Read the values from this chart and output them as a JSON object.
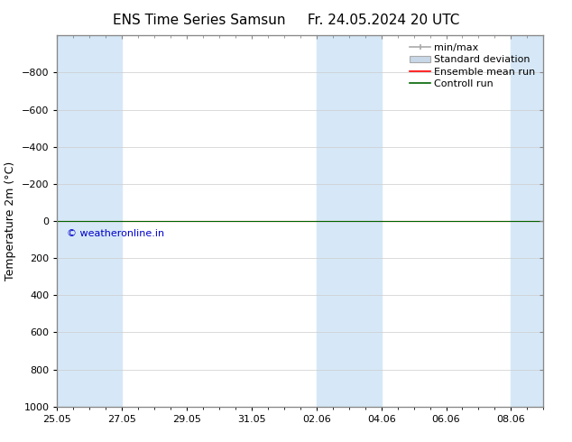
{
  "title_left": "ENS Time Series Samsun",
  "title_right": "Fr. 24.05.2024 20 UTC",
  "ylabel": "Temperature 2m (°C)",
  "watermark": "© weatheronline.in",
  "ylim_top": -1000,
  "ylim_bottom": 1000,
  "yticks": [
    -800,
    -600,
    -400,
    -200,
    0,
    200,
    400,
    600,
    800,
    1000
  ],
  "bg_color": "#ffffff",
  "plot_bg_color": "#ffffff",
  "shaded_band_color": "#d6e8f7",
  "xtick_labels": [
    "25.05",
    "27.05",
    "29.05",
    "31.05",
    "02.06",
    "04.06",
    "06.06",
    "08.06"
  ],
  "xtick_days": [
    0,
    2,
    4,
    6,
    8,
    10,
    12,
    14
  ],
  "xlim": [
    0,
    15
  ],
  "shaded_ranges": [
    [
      0,
      2
    ],
    [
      8,
      10
    ],
    [
      14,
      15
    ]
  ],
  "ensemble_mean_color": "#ff0000",
  "control_run_color": "#006400",
  "minmax_color": "#aaaaaa",
  "std_color": "#c8d8e8",
  "title_fontsize": 11,
  "axis_label_fontsize": 9,
  "tick_fontsize": 8,
  "legend_fontsize": 8,
  "watermark_color": "#0000cc",
  "watermark_fontsize": 8,
  "grid_color": "#cccccc",
  "spine_color": "#888888"
}
